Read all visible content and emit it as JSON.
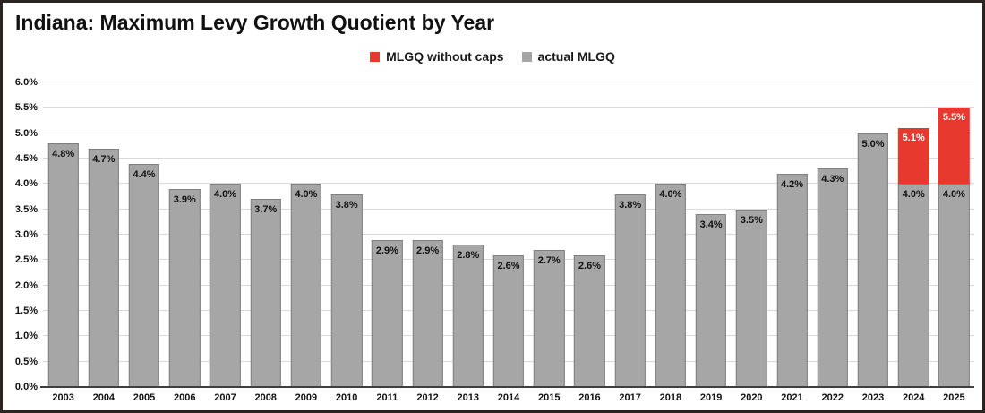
{
  "chart": {
    "title": "Indiana: Maximum Levy Growth Quotient by Year",
    "legend": [
      {
        "label": "MLGQ without caps",
        "color": "#e8392f"
      },
      {
        "label": "actual MLGQ",
        "color": "#a6a6a6"
      }
    ]
  },
  "chart_data": {
    "type": "bar",
    "stacked": true,
    "title": "Indiana: Maximum Levy Growth Quotient by Year",
    "xlabel": "",
    "ylabel": "",
    "ylim": [
      0,
      6
    ],
    "ytick_values": [
      0,
      0.5,
      1,
      1.5,
      2,
      2.5,
      3,
      3.5,
      4,
      4.5,
      5,
      5.5,
      6
    ],
    "ytick_labels": [
      "0.0%",
      "0.5%",
      "1.0%",
      "1.5%",
      "2.0%",
      "2.5%",
      "3.0%",
      "3.5%",
      "4.0%",
      "4.5%",
      "5.0%",
      "5.5%",
      "6.0%"
    ],
    "grid": true,
    "legend_position": "top-center",
    "categories": [
      "2003",
      "2004",
      "2005",
      "2006",
      "2007",
      "2008",
      "2009",
      "2010",
      "2011",
      "2012",
      "2013",
      "2014",
      "2015",
      "2016",
      "2017",
      "2018",
      "2019",
      "2020",
      "2021",
      "2022",
      "2023",
      "2024",
      "2025"
    ],
    "series": [
      {
        "name": "actual MLGQ",
        "color": "#a6a6a6",
        "values": [
          4.8,
          4.7,
          4.4,
          3.9,
          4.0,
          3.7,
          4.0,
          3.8,
          2.9,
          2.9,
          2.8,
          2.6,
          2.7,
          2.6,
          3.8,
          4.0,
          3.4,
          3.5,
          4.2,
          4.3,
          5.0,
          4.0,
          4.0
        ],
        "labels": [
          "4.8%",
          "4.7%",
          "4.4%",
          "3.9%",
          "4.0%",
          "3.7%",
          "4.0%",
          "3.8%",
          "2.9%",
          "2.9%",
          "2.8%",
          "2.6%",
          "2.7%",
          "2.6%",
          "3.8%",
          "4.0%",
          "3.4%",
          "3.5%",
          "4.2%",
          "4.3%",
          "5.0%",
          "4.0%",
          "4.0%"
        ]
      },
      {
        "name": "MLGQ without caps",
        "color": "#e8392f",
        "values": [
          null,
          null,
          null,
          null,
          null,
          null,
          null,
          null,
          null,
          null,
          null,
          null,
          null,
          null,
          null,
          null,
          null,
          null,
          null,
          null,
          null,
          5.1,
          5.5
        ],
        "labels": [
          null,
          null,
          null,
          null,
          null,
          null,
          null,
          null,
          null,
          null,
          null,
          null,
          null,
          null,
          null,
          null,
          null,
          null,
          null,
          null,
          null,
          "5.1%",
          "5.5%"
        ]
      }
    ]
  }
}
